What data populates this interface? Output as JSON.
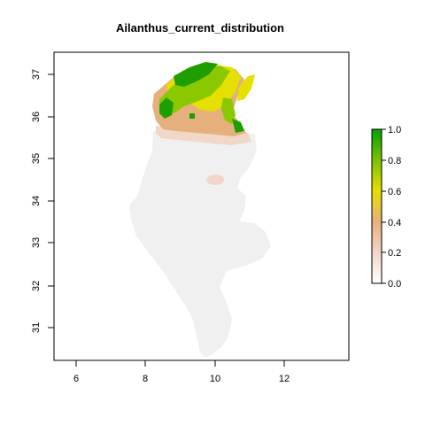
{
  "title": "Ailanthus_current_distribution",
  "x_axis": {
    "ticks": [
      "6",
      "8",
      "10",
      "12"
    ]
  },
  "y_axis": {
    "ticks": [
      "31",
      "32",
      "33",
      "34",
      "35",
      "36",
      "37"
    ]
  },
  "legend": {
    "ticks": [
      "0.0",
      "0.2",
      "0.4",
      "0.6",
      "0.8",
      "1.0"
    ],
    "colors": [
      "#ffffff",
      "#f2d6c8",
      "#e8b07a",
      "#e6e000",
      "#7cc200",
      "#00a000"
    ]
  },
  "colors": {
    "low": "#f0f0f0",
    "pale": "#f2d6c8",
    "tan": "#e6b07c",
    "yellow": "#e6e000",
    "green_light": "#8cc800",
    "green_dark": "#1e9e00"
  }
}
